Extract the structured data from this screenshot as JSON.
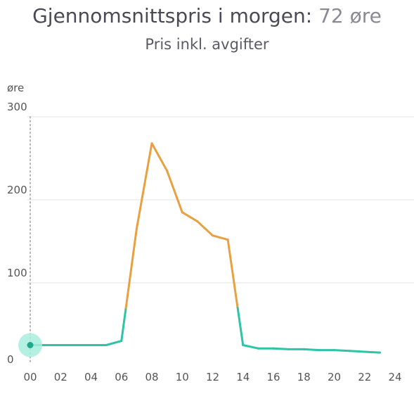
{
  "header": {
    "title_prefix": "Gjennomsnittspris i morgen:",
    "title_value": "72 øre",
    "subtitle": "Pris inkl. avgifter"
  },
  "colors": {
    "low": "#2ec4a6",
    "high": "#e9a040",
    "grid": "#e3e3e3",
    "marker_halo": "#a8eede",
    "marker_dot": "#1fa88a",
    "text": "#4a4a55",
    "axis_text": "#555555"
  },
  "chart_data": {
    "type": "line",
    "title": "Gjennomsnittspris i morgen: 72 øre",
    "subtitle": "Pris inkl. avgifter",
    "xlabel": "",
    "ylabel": "øre",
    "xlim": [
      0,
      24
    ],
    "ylim": [
      0,
      300
    ],
    "x_ticks": [
      "00",
      "02",
      "04",
      "06",
      "08",
      "10",
      "12",
      "14",
      "16",
      "18",
      "20",
      "22",
      "24"
    ],
    "y_ticks": [
      "300",
      "200",
      "100",
      "0"
    ],
    "grid": true,
    "highlight_threshold": 70,
    "marker_at_hour": 0,
    "series": [
      {
        "x": [
          0,
          1,
          2,
          3,
          4,
          5,
          6,
          7,
          8,
          9,
          10,
          11,
          12,
          13,
          14,
          15,
          16,
          17,
          18,
          19,
          20,
          21,
          22,
          23
        ],
        "values": [
          25,
          25,
          25,
          25,
          25,
          25,
          30,
          165,
          268,
          235,
          185,
          174,
          157,
          152,
          25,
          21,
          21,
          20,
          20,
          19,
          19,
          18,
          17,
          16
        ]
      }
    ]
  }
}
